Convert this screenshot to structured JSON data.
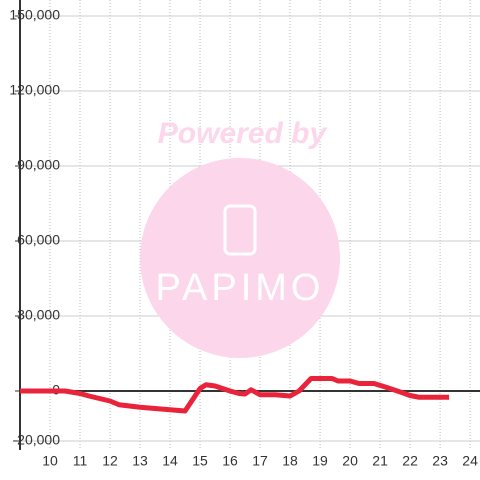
{
  "chart_data": {
    "type": "line",
    "x": [
      9.0,
      10.5,
      11.0,
      11.3,
      12.0,
      12.3,
      13.0,
      13.5,
      14.0,
      14.5,
      15.0,
      15.2,
      15.5,
      16.0,
      16.3,
      16.5,
      16.7,
      17.0,
      17.5,
      18.0,
      18.3,
      18.7,
      19.4,
      19.6,
      20.0,
      20.3,
      20.8,
      21.2,
      21.7,
      22.0,
      22.3,
      23.3
    ],
    "series": [
      {
        "color": "#e8233a",
        "values": [
          0,
          0,
          -1000,
          -2000,
          -4000,
          -5500,
          -6500,
          -7000,
          -7500,
          -8000,
          1000,
          2500,
          2000,
          0,
          -1000,
          -1200,
          500,
          -1500,
          -1500,
          -2000,
          0,
          5000,
          5000,
          4000,
          4000,
          3000,
          3000,
          1500,
          -500,
          -1800,
          -2500,
          -2500
        ]
      }
    ],
    "xlim": [
      9.0,
      24.33
    ],
    "xticks": [
      10,
      11,
      12,
      13,
      14,
      15,
      16,
      17,
      18,
      19,
      20,
      21,
      22,
      23,
      24
    ],
    "ylim": [
      -23600,
      156400
    ],
    "yticks": [
      {
        "value": -20000,
        "label": "-20,000"
      },
      0,
      {
        "value": 30000,
        "label": "30,000"
      },
      {
        "value": 60000,
        "label": "60,000"
      },
      {
        "value": 90000,
        "label": "90,000"
      },
      {
        "value": 120000,
        "label": "120,000"
      },
      {
        "value": 150000,
        "label": "150,000"
      }
    ],
    "grid": true,
    "watermark": {
      "line1": "Powered by",
      "line2": "PAPIMO"
    }
  }
}
